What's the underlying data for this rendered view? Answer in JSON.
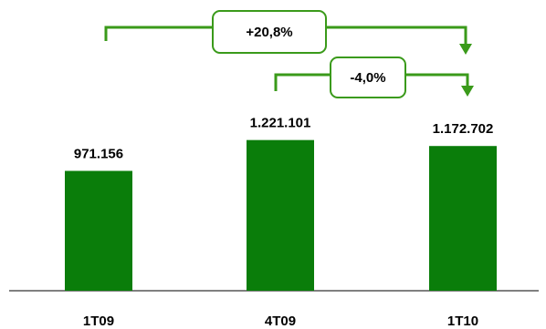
{
  "chart_data": {
    "type": "bar",
    "categories": [
      "1T09",
      "4T09",
      "1T10"
    ],
    "values": [
      971156,
      1221101,
      1172702
    ],
    "value_labels": [
      "971.156",
      "1.221.101",
      "1.172.702"
    ],
    "title": "",
    "xlabel": "",
    "ylabel": "",
    "ylim": [
      0,
      1350000
    ],
    "grid": false,
    "annotations": [
      {
        "from": "1T09",
        "to": "1T10",
        "label": "+20,8%"
      },
      {
        "from": "4T09",
        "to": "1T10",
        "label": "-4,0%"
      }
    ],
    "colors": {
      "bar": "#0a7d0a",
      "annotation": "#3a9a1a",
      "axis": "#000000"
    }
  }
}
